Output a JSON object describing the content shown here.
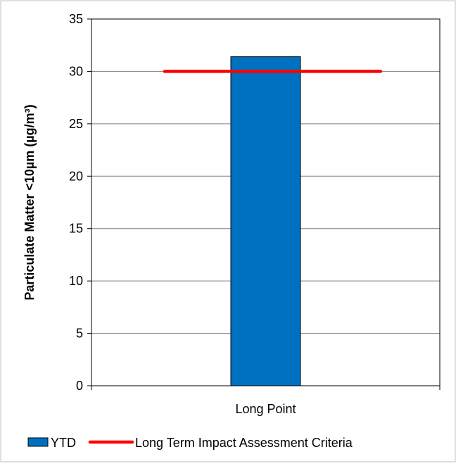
{
  "chart_data": {
    "type": "bar",
    "categories": [
      "Long Point"
    ],
    "series": [
      {
        "name": "YTD",
        "type": "bar",
        "values": [
          31.4
        ],
        "color": "#0070C0"
      },
      {
        "name": "Long Term Impact Assessment Criteria",
        "type": "line",
        "values": [
          30
        ],
        "color": "#FF0000"
      }
    ],
    "title": "",
    "xlabel": "",
    "ylabel": "Particulate Matter <10µm (µg/m³)",
    "ylim": [
      0,
      35
    ],
    "yticks": [
      0,
      5,
      10,
      15,
      20,
      25,
      30,
      35
    ],
    "grid": true,
    "legend_position": "bottom"
  }
}
